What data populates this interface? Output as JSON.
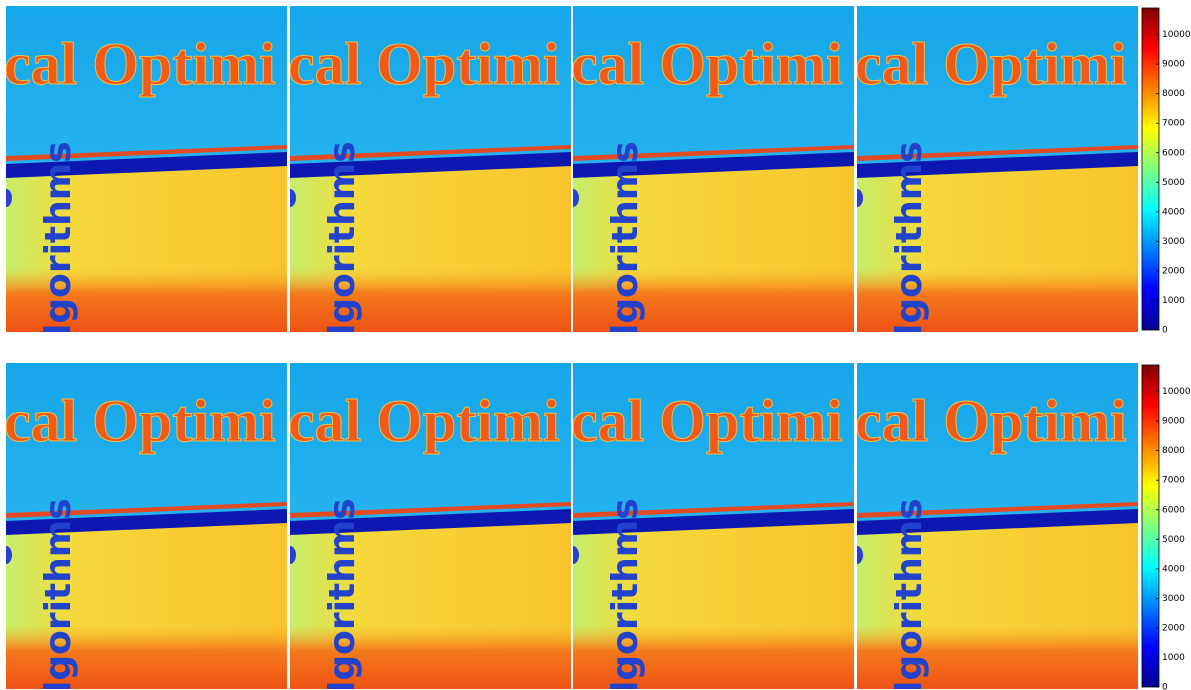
{
  "image_text": {
    "upper_fragment": "cal Optimi",
    "side_fragment": "lgorithms"
  },
  "colorbars": [
    {
      "lim": [
        0,
        10900
      ],
      "ticks": [
        0,
        1000,
        2000,
        3000,
        4000,
        5000,
        6000,
        7000,
        8000,
        9000,
        10000
      ]
    },
    {
      "lim": [
        0,
        10900
      ],
      "ticks": [
        0,
        1000,
        2000,
        3000,
        4000,
        5000,
        6000,
        7000,
        8000,
        9000,
        10000
      ]
    }
  ]
}
